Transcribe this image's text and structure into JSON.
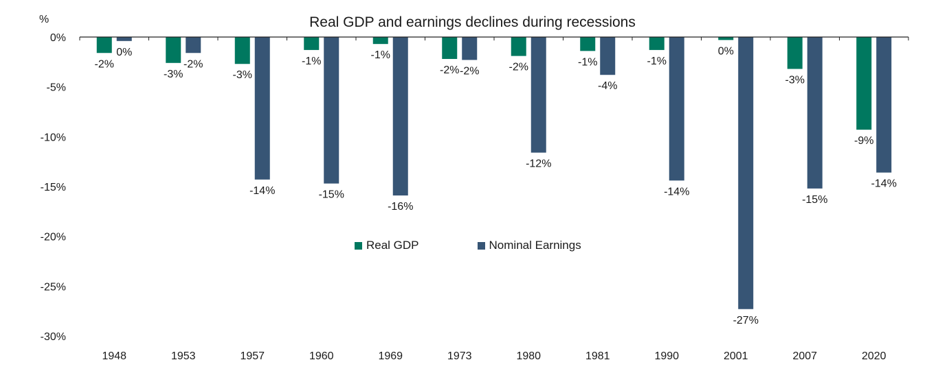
{
  "chart_data": {
    "type": "bar",
    "title": "Real GDP and earnings declines during recessions",
    "ylabel": "%",
    "xlabel": "",
    "ylim": [
      -30,
      0
    ],
    "yticks": [
      0,
      -5,
      -10,
      -15,
      -20,
      -25,
      -30
    ],
    "ytick_labels": [
      "0%",
      "-5%",
      "-10%",
      "-15%",
      "-20%",
      "-25%",
      "-30%"
    ],
    "categories": [
      "1948",
      "1953",
      "1957",
      "1960",
      "1969",
      "1973",
      "1980",
      "1981",
      "1990",
      "2001",
      "2007",
      "2020"
    ],
    "series": [
      {
        "name": "Real GDP",
        "color": "#00785f",
        "values": [
          -1.6,
          -2.6,
          -2.7,
          -1.3,
          -0.7,
          -2.2,
          -1.9,
          -1.4,
          -1.3,
          -0.3,
          -3.2,
          -9.3
        ],
        "labels": [
          "-2%",
          "-3%",
          "-3%",
          "-1%",
          "-1%",
          "-2%",
          "-2%",
          "-1%",
          "-1%",
          "0%",
          "-3%",
          "-9%"
        ]
      },
      {
        "name": "Nominal Earnings",
        "color": "#375575",
        "values": [
          -0.4,
          -1.6,
          -14.3,
          -14.7,
          -15.9,
          -2.3,
          -11.6,
          -3.8,
          -14.4,
          -27.3,
          -15.2,
          -13.6
        ],
        "labels": [
          "0%",
          "-2%",
          "-14%",
          "-15%",
          "-16%",
          "-2%",
          "-12%",
          "-4%",
          "-14%",
          "-27%",
          "-15%",
          "-14%"
        ]
      }
    ],
    "legend_position": "center",
    "grid": false
  }
}
